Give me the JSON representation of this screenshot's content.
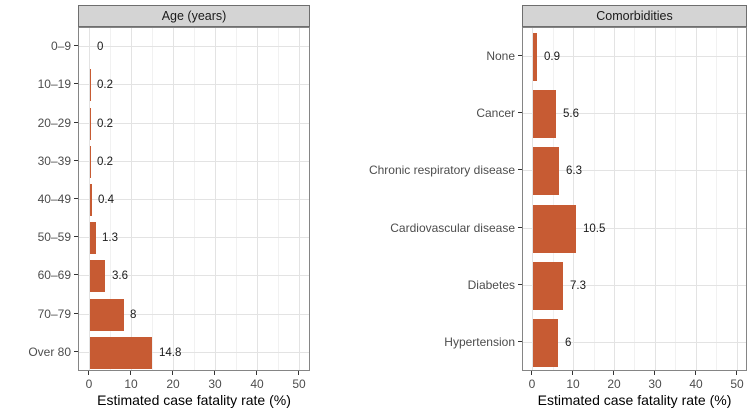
{
  "colors": {
    "bar": "#C75B33",
    "strip_bg": "#D4D4D4",
    "strip_border": "#6E6E6E",
    "strip_text": "#1A1A1A",
    "panel_border": "#858585",
    "grid_major": "#E3E3E3",
    "grid_minor": "#F1F1F1",
    "tick": "#333333",
    "tick_label": "#4D4D4D",
    "axis_title": "#000000",
    "value_label": "#1A1A1A"
  },
  "chart_data": [
    {
      "type": "bar",
      "orientation": "horizontal",
      "panel_title": "Age (years)",
      "categories": [
        "0–9",
        "10–19",
        "20–29",
        "30–39",
        "40–49",
        "50–59",
        "60–69",
        "70–79",
        "Over 80"
      ],
      "values": [
        0,
        0.2,
        0.2,
        0.2,
        0.4,
        1.3,
        3.6,
        8,
        14.8
      ],
      "value_labels": [
        "0",
        "0.2",
        "0.2",
        "0.2",
        "0.4",
        "1.3",
        "3.6",
        "8",
        "14.8"
      ],
      "xlabel": "Estimated case fatality rate (%)",
      "ylabel": "",
      "xticks": [
        0,
        10,
        20,
        30,
        40,
        50
      ],
      "xlim": [
        0,
        50
      ],
      "grid": true,
      "legend": "none"
    },
    {
      "type": "bar",
      "orientation": "horizontal",
      "panel_title": "Comorbidities",
      "categories": [
        "None",
        "Cancer",
        "Chronic respiratory disease",
        "Cardiovascular disease",
        "Diabetes",
        "Hypertension"
      ],
      "values": [
        0.9,
        5.6,
        6.3,
        10.5,
        7.3,
        6
      ],
      "value_labels": [
        "0.9",
        "5.6",
        "6.3",
        "10.5",
        "7.3",
        "6"
      ],
      "xlabel": "Estimated case fatality rate (%)",
      "ylabel": "",
      "xticks": [
        0,
        10,
        20,
        30,
        40,
        50
      ],
      "xlim": [
        0,
        50
      ],
      "grid": true,
      "legend": "none"
    }
  ]
}
